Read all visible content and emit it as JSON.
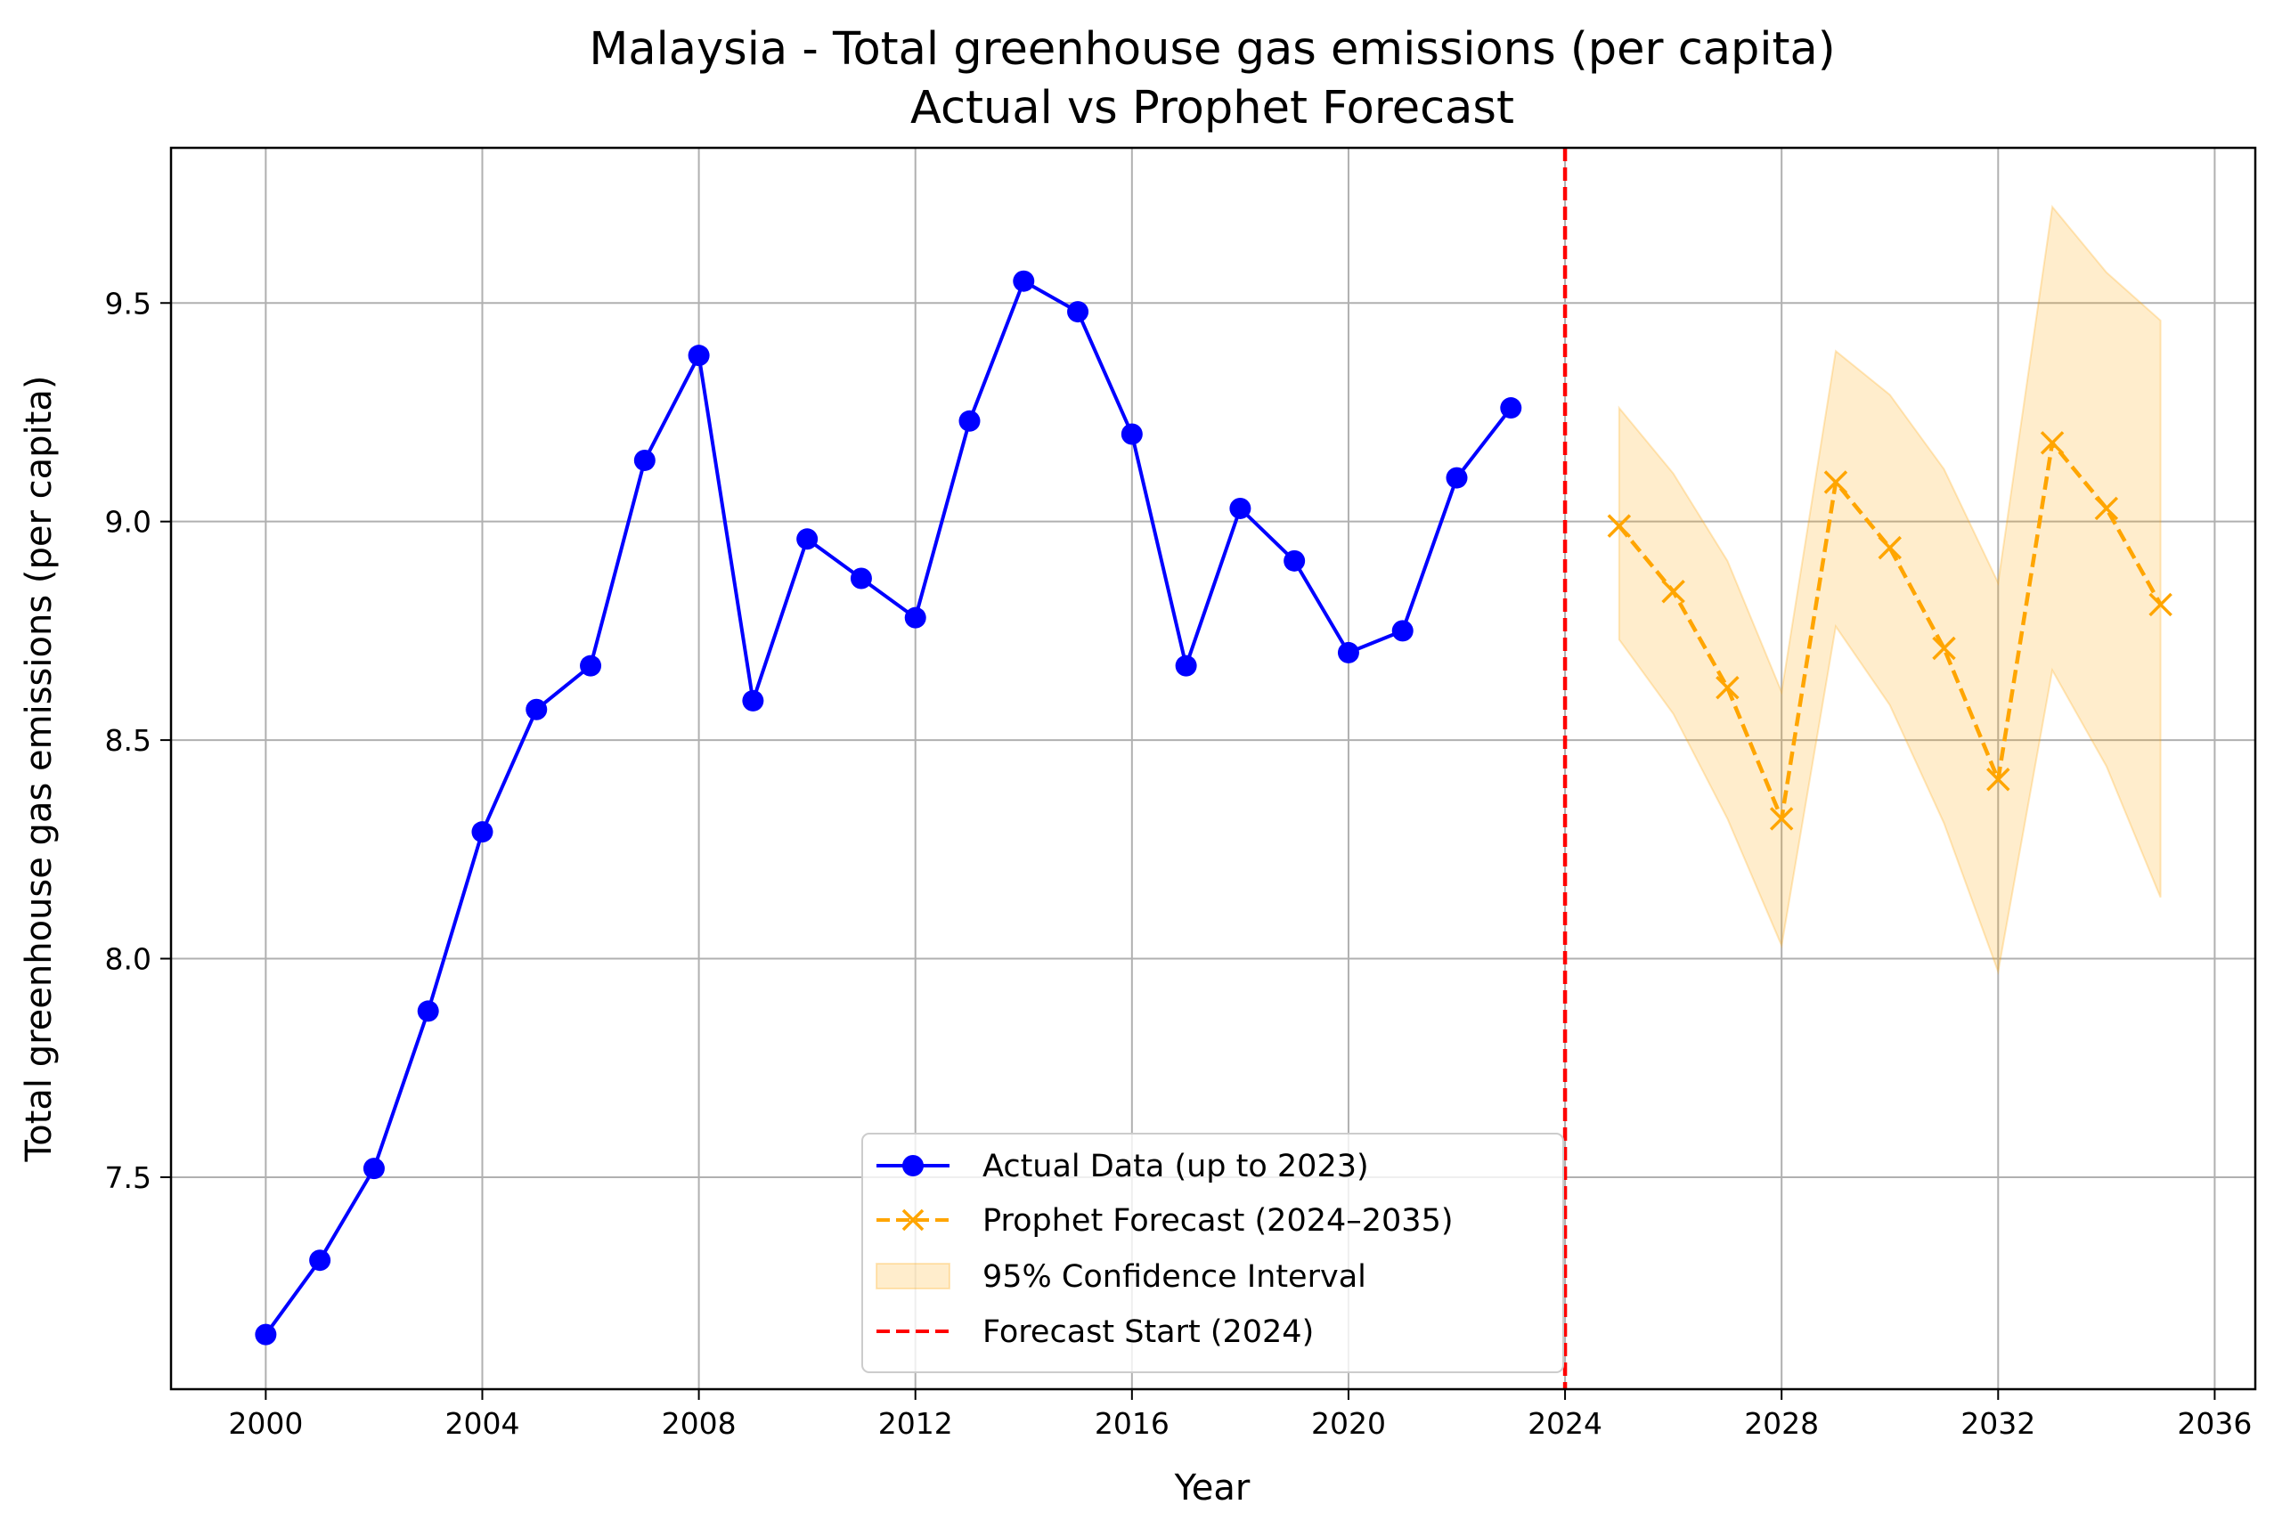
{
  "chart_data": {
    "type": "line",
    "title": "Malaysia - Total greenhouse gas emissions (per capita)",
    "subtitle": "Actual vs Prophet Forecast",
    "xlabel": "Year",
    "ylabel": "Total greenhouse gas emissions (per capita)",
    "xlim": [
      1998.25,
      2036.75
    ],
    "ylim": [
      7.015,
      9.855
    ],
    "xticks": [
      "2000",
      "2004",
      "2008",
      "2012",
      "2016",
      "2020",
      "2024",
      "2028",
      "2032",
      "2036"
    ],
    "yticks": [
      "7.5",
      "8.0",
      "8.5",
      "9.0",
      "9.5"
    ],
    "grid": true,
    "legend_position": "lower center",
    "series": [
      {
        "name": "Actual Data (up to 2023)",
        "style": "solid line with circle markers",
        "color": "#0000ff",
        "x": [
          2000,
          2001,
          2002,
          2003,
          2004,
          2005,
          2006,
          2007,
          2008,
          2009,
          2010,
          2011,
          2012,
          2013,
          2014,
          2015,
          2016,
          2017,
          2018,
          2019,
          2020,
          2021,
          2022,
          2023
        ],
        "y": [
          7.14,
          7.31,
          7.52,
          7.88,
          8.29,
          8.57,
          8.67,
          9.14,
          9.38,
          8.59,
          8.96,
          8.87,
          8.78,
          9.23,
          9.55,
          9.48,
          9.2,
          8.67,
          9.03,
          8.91,
          8.7,
          8.75,
          9.1,
          9.26
        ]
      },
      {
        "name": "Prophet Forecast (2024–2035)",
        "style": "dashed line with x markers",
        "color": "#ffa500",
        "x": [
          2025,
          2026,
          2027,
          2028,
          2029,
          2030,
          2031,
          2032,
          2033,
          2034,
          2035
        ],
        "y": [
          8.99,
          8.84,
          8.62,
          8.32,
          9.09,
          8.94,
          8.71,
          8.41,
          9.18,
          9.03,
          8.81
        ]
      }
    ],
    "confidence_interval": {
      "name": "95% Confidence Interval",
      "color": "#ffa500",
      "opacity": 0.2,
      "x": [
        2025,
        2026,
        2027,
        2028,
        2029,
        2030,
        2031,
        2032,
        2033,
        2034,
        2035
      ],
      "lower": [
        8.73,
        8.56,
        8.32,
        8.03,
        8.76,
        8.58,
        8.31,
        7.97,
        8.66,
        8.44,
        8.14
      ],
      "upper": [
        9.26,
        9.11,
        8.91,
        8.61,
        9.39,
        9.29,
        9.12,
        8.86,
        9.72,
        9.57,
        9.46
      ]
    },
    "vertical_line": {
      "name": "Forecast Start (2024)",
      "x": 2024,
      "style": "dashed",
      "color": "#ff0000"
    }
  }
}
